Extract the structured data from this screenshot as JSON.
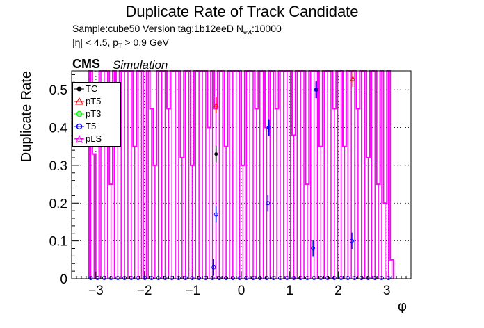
{
  "chart_data": {
    "type": "histogram",
    "title": "Duplicate Rate of Track Candidate",
    "xlabel": "φ",
    "ylabel": "Duplicate Rate",
    "xlim": [
      -3.5,
      3.5
    ],
    "ylim": [
      0,
      0.55
    ],
    "xticks": [
      -3,
      -2,
      -1,
      0,
      1,
      2,
      3
    ],
    "yticks": [
      0,
      0.1,
      0.2,
      0.3,
      0.4,
      0.5
    ],
    "grid": true,
    "legend_position": "top-left",
    "bins": {
      "min": -3.14159,
      "max": 3.14159,
      "count": 90
    },
    "series": [
      {
        "name": "TC",
        "color": "#000000",
        "marker": "circle",
        "nonzero": [
          {
            "phi": -0.52,
            "value": 0.33
          },
          {
            "phi": 1.54,
            "value": 0.5
          }
        ]
      },
      {
        "name": "pT5",
        "color": "#ff0000",
        "marker": "triangle-up",
        "nonzero": [
          {
            "phi": -0.52,
            "value": 0.46
          },
          {
            "phi": 2.3,
            "value": 0.53
          }
        ]
      },
      {
        "name": "pT3",
        "color": "#00ff00",
        "marker": "triangle-down",
        "nonzero": []
      },
      {
        "name": "T5",
        "color": "#0000ff",
        "marker": "circle",
        "nonzero": [
          {
            "phi": -0.52,
            "value": 0.17
          },
          {
            "phi": 0.55,
            "value": 0.2
          },
          {
            "phi": 0.57,
            "value": 0.4
          },
          {
            "phi": 1.48,
            "value": 0.08
          },
          {
            "phi": 1.55,
            "value": 0.5
          },
          {
            "phi": 2.28,
            "value": 0.1
          },
          {
            "phi": -0.57,
            "value": 0.03
          }
        ]
      },
      {
        "name": "pLS",
        "color": "#ff00ff",
        "marker": "star",
        "values": [
          0.55,
          0.33,
          0.0,
          0.55,
          0.55,
          0.55,
          0.25,
          0.55,
          0.45,
          0.55,
          0.55,
          0.55,
          0.55,
          0.35,
          0.55,
          0.55,
          0.0,
          0.55,
          0.45,
          0.3,
          0.55,
          0.55,
          0.55,
          0.45,
          0.55,
          0.55,
          0.55,
          0.32,
          0.55,
          0.55,
          0.3,
          0.55,
          0.55,
          0.55,
          0.55,
          0.4,
          0.55,
          0.45,
          0.55,
          0.55,
          0.35,
          0.55,
          0.55,
          0.55,
          0.55,
          0.3,
          0.55,
          0.55,
          0.55,
          0.45,
          0.55,
          0.55,
          0.4,
          0.55,
          0.55,
          0.45,
          0.55,
          0.55,
          0.55,
          0.55,
          0.38,
          0.55,
          0.55,
          0.55,
          0.25,
          0.55,
          0.55,
          0.55,
          0.35,
          0.55,
          0.55,
          0.55,
          0.45,
          0.55,
          0.55,
          0.35,
          0.55,
          0.55,
          0.55,
          0.45,
          0.55,
          0.55,
          0.32,
          0.55,
          0.55,
          0.25,
          0.55,
          0.2,
          0.55,
          0.05
        ]
      }
    ]
  },
  "header": {
    "title": "Duplicate Rate of Track Candidate",
    "sample_line": "Sample:cube50   Version tag:1b12eeD  N",
    "nevt_sub": "evt",
    "nevt_value": ":10000",
    "cut_prefix": "|η| < 4.5, p",
    "cut_sub": "T",
    "cut_suffix": " > 0.9 GeV",
    "cms": "CMS",
    "simulation": "Simulation"
  }
}
